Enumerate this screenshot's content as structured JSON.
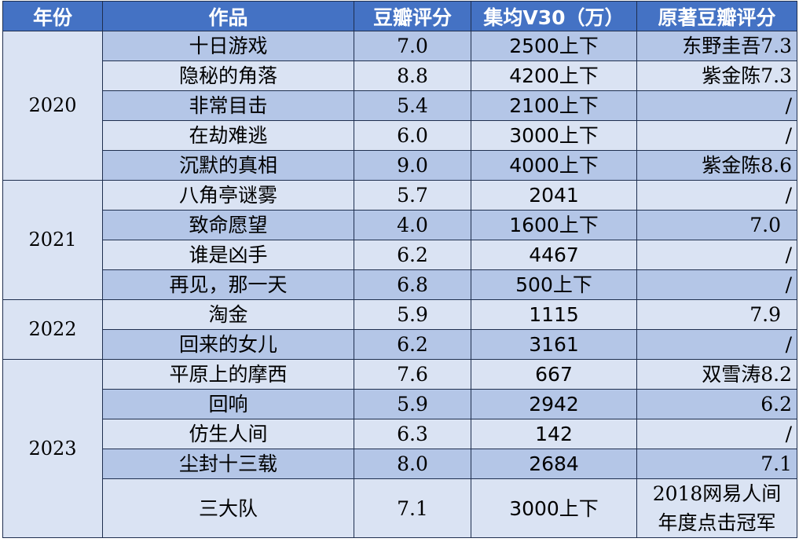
{
  "headers": [
    "年份",
    "作品",
    "豆瓣评分",
    "集均V30（万）",
    "原著豆瓣评分"
  ],
  "years": [
    "2020",
    "2021",
    "2022",
    "2023"
  ],
  "rows": [
    {
      "title": "十日游戏",
      "score": "7.0",
      "v30": "2500上下",
      "orig": "东野圭吾7.3"
    },
    {
      "title": "隐秘的角落",
      "score": "8.8",
      "v30": "4200上下",
      "orig": "紫金陈7.3"
    },
    {
      "title": "非常目击",
      "score": "5.4",
      "v30": "2100上下",
      "orig": "/"
    },
    {
      "title": "在劫难逃",
      "score": "6.0",
      "v30": "3000上下",
      "orig": "/"
    },
    {
      "title": "沉默的真相",
      "score": "9.0",
      "v30": "4000上下",
      "orig": "紫金陈8.6"
    },
    {
      "title": "八角亭谜雾",
      "score": "5.7",
      "v30": "2041",
      "orig": "/"
    },
    {
      "title": "致命愿望",
      "score": "4.0",
      "v30": "1600上下",
      "orig": "7.0"
    },
    {
      "title": "谁是凶手",
      "score": "6.2",
      "v30": "4467",
      "orig": "/"
    },
    {
      "title": "再见，那一天",
      "score": "6.8",
      "v30": "500上下",
      "orig": "/"
    },
    {
      "title": "淘金",
      "score": "5.9",
      "v30": "1115",
      "orig": "7.9"
    },
    {
      "title": "回来的女儿",
      "score": "6.2",
      "v30": "3161",
      "orig": "/"
    },
    {
      "title": "平原上的摩西",
      "score": "7.6",
      "v30": "667",
      "orig": "双雪涛8.2"
    },
    {
      "title": "回响",
      "score": "5.9",
      "v30": "2942",
      "orig": "6.2"
    },
    {
      "title": "仿生人间",
      "score": "6.3",
      "v30": "142",
      "orig": "/"
    },
    {
      "title": "尘封十三载",
      "score": "8.0",
      "v30": "2684",
      "orig": "7.1"
    },
    {
      "title": "三大队",
      "score": "7.1",
      "v30": "3000上下",
      "orig_line1": "2018网易人间",
      "orig_line2": "年度点击冠军"
    }
  ]
}
